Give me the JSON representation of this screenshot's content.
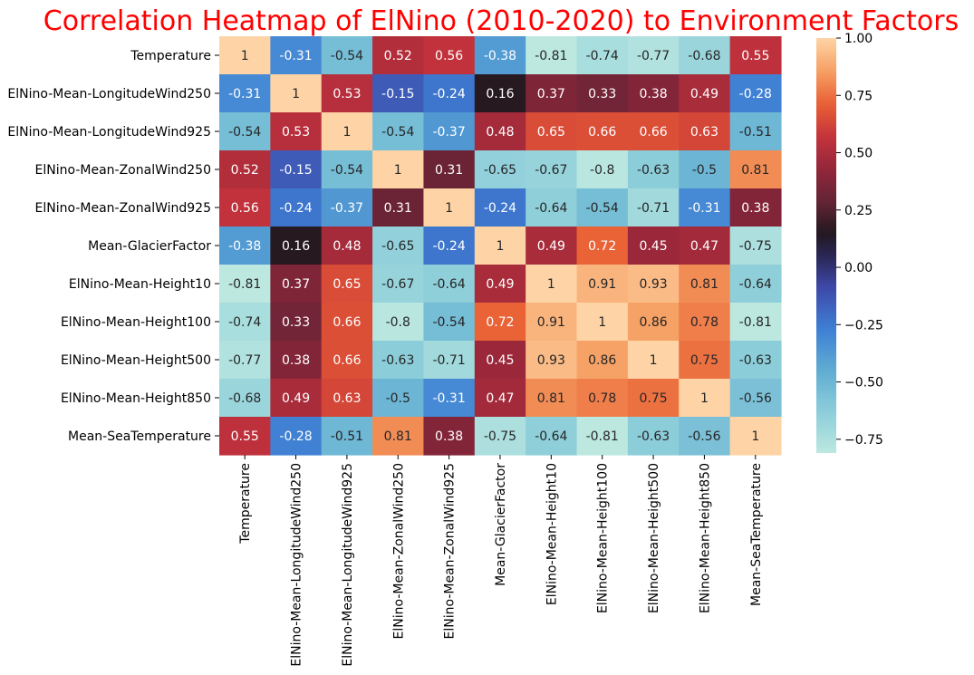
{
  "chart_data": {
    "type": "heatmap",
    "title": "Correlation Heatmap of ElNino (2010-2020) to Environment Factors",
    "title_color": "#ff0000",
    "colormap": "icefire",
    "color_range": [
      -0.81,
      1.0
    ],
    "colorbar_ticks": [
      1.0,
      0.75,
      0.5,
      0.25,
      0.0,
      -0.25,
      -0.5,
      -0.75
    ],
    "colorbar_tick_labels": [
      "1.00",
      "0.75",
      "0.50",
      "0.25",
      "0.00",
      "−0.25",
      "−0.50",
      "−0.75"
    ],
    "labels": [
      "Temperature",
      "ElNino-Mean-LongitudeWind250",
      "ElNino-Mean-LongitudeWind925",
      "ElNino-Mean-ZonalWind250",
      "ElNino-Mean-ZonalWind925",
      "Mean-GlacierFactor",
      "ElNino-Mean-Height10",
      "ElNino-Mean-Height100",
      "ElNino-Mean-Height500",
      "ElNino-Mean-Height850",
      "Mean-SeaTemperature"
    ],
    "values": [
      [
        1,
        -0.31,
        -0.54,
        0.52,
        0.56,
        -0.38,
        -0.81,
        -0.74,
        -0.77,
        -0.68,
        0.55
      ],
      [
        -0.31,
        1,
        0.53,
        -0.15,
        -0.24,
        0.16,
        0.37,
        0.33,
        0.38,
        0.49,
        -0.28
      ],
      [
        -0.54,
        0.53,
        1,
        -0.54,
        -0.37,
        0.48,
        0.65,
        0.66,
        0.66,
        0.63,
        -0.51
      ],
      [
        0.52,
        -0.15,
        -0.54,
        1,
        0.31,
        -0.65,
        -0.67,
        -0.8,
        -0.63,
        -0.5,
        0.81
      ],
      [
        0.56,
        -0.24,
        -0.37,
        0.31,
        1,
        -0.24,
        -0.64,
        -0.54,
        -0.71,
        -0.31,
        0.38
      ],
      [
        -0.38,
        0.16,
        0.48,
        -0.65,
        -0.24,
        1,
        0.49,
        0.72,
        0.45,
        0.47,
        -0.75
      ],
      [
        -0.81,
        0.37,
        0.65,
        -0.67,
        -0.64,
        0.49,
        1,
        0.91,
        0.93,
        0.81,
        -0.64
      ],
      [
        -0.74,
        0.33,
        0.66,
        -0.8,
        -0.54,
        0.72,
        0.91,
        1,
        0.86,
        0.78,
        -0.81
      ],
      [
        -0.77,
        0.38,
        0.66,
        -0.63,
        -0.71,
        0.45,
        0.93,
        0.86,
        1,
        0.75,
        -0.63
      ],
      [
        -0.68,
        0.49,
        0.63,
        -0.5,
        -0.31,
        0.47,
        0.81,
        0.78,
        0.75,
        1,
        -0.56
      ],
      [
        0.55,
        -0.28,
        -0.51,
        0.81,
        0.38,
        -0.75,
        -0.64,
        -0.81,
        -0.63,
        -0.56,
        1
      ]
    ]
  }
}
